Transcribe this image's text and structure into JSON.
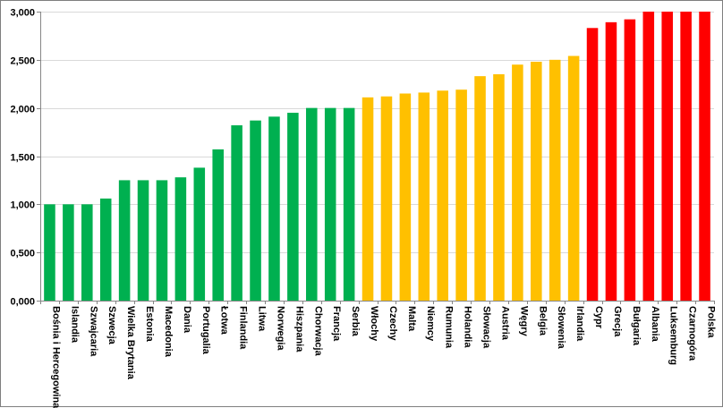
{
  "chart_data": {
    "type": "bar",
    "title": "",
    "xlabel": "",
    "ylabel": "",
    "ylim": [
      0,
      3
    ],
    "ytick_values": [
      0,
      0.5,
      1,
      1.5,
      2,
      2.5,
      3
    ],
    "ytick_labels": [
      "0,000",
      "0,500",
      "1,000",
      "1,500",
      "2,000",
      "2,500",
      "3,000"
    ],
    "grid": true,
    "legend": "none",
    "categories": [
      "Bośnia i Hercegowina",
      "Islandia",
      "Szwajcaria",
      "Szwecja",
      "Wielka Brytania",
      "Estonia",
      "Macedonia",
      "Dania",
      "Portugalia",
      "Łotwa",
      "Finlandia",
      "Litwa",
      "Norwegia",
      "Hiszpania",
      "Chorwacja",
      "Francja",
      "Serbia",
      "Włochy",
      "Czechy",
      "Malta",
      "Niemcy",
      "Rumunia",
      "Holandia",
      "Słowacja",
      "Austria",
      "Węgry",
      "Belgia",
      "Słowenia",
      "Irlandia",
      "Cypr",
      "Grecja",
      "Bułgaria",
      "Albania",
      "Luksemburg",
      "Czarnogóra",
      "Polska"
    ],
    "values": [
      1.0,
      1.0,
      1.0,
      1.06,
      1.25,
      1.25,
      1.25,
      1.28,
      1.38,
      1.57,
      1.82,
      1.87,
      1.91,
      1.95,
      2.0,
      2.0,
      2.0,
      2.11,
      2.12,
      2.15,
      2.16,
      2.18,
      2.19,
      2.33,
      2.35,
      2.45,
      2.48,
      2.5,
      2.54,
      2.83,
      2.89,
      2.92,
      3.0,
      3.0,
      3.0,
      3.0
    ],
    "colors": [
      "#00b050",
      "#00b050",
      "#00b050",
      "#00b050",
      "#00b050",
      "#00b050",
      "#00b050",
      "#00b050",
      "#00b050",
      "#00b050",
      "#00b050",
      "#00b050",
      "#00b050",
      "#00b050",
      "#00b050",
      "#00b050",
      "#00b050",
      "#ffc000",
      "#ffc000",
      "#ffc000",
      "#ffc000",
      "#ffc000",
      "#ffc000",
      "#ffc000",
      "#ffc000",
      "#ffc000",
      "#ffc000",
      "#ffc000",
      "#ffc000",
      "#ff0000",
      "#ff0000",
      "#ff0000",
      "#ff0000",
      "#ff0000",
      "#ff0000",
      "#ff0000"
    ],
    "palette": {
      "green": "#00b050",
      "yellow": "#ffc000",
      "red": "#ff0000",
      "grid": "#d9d9d9",
      "axis": "#868686"
    }
  }
}
